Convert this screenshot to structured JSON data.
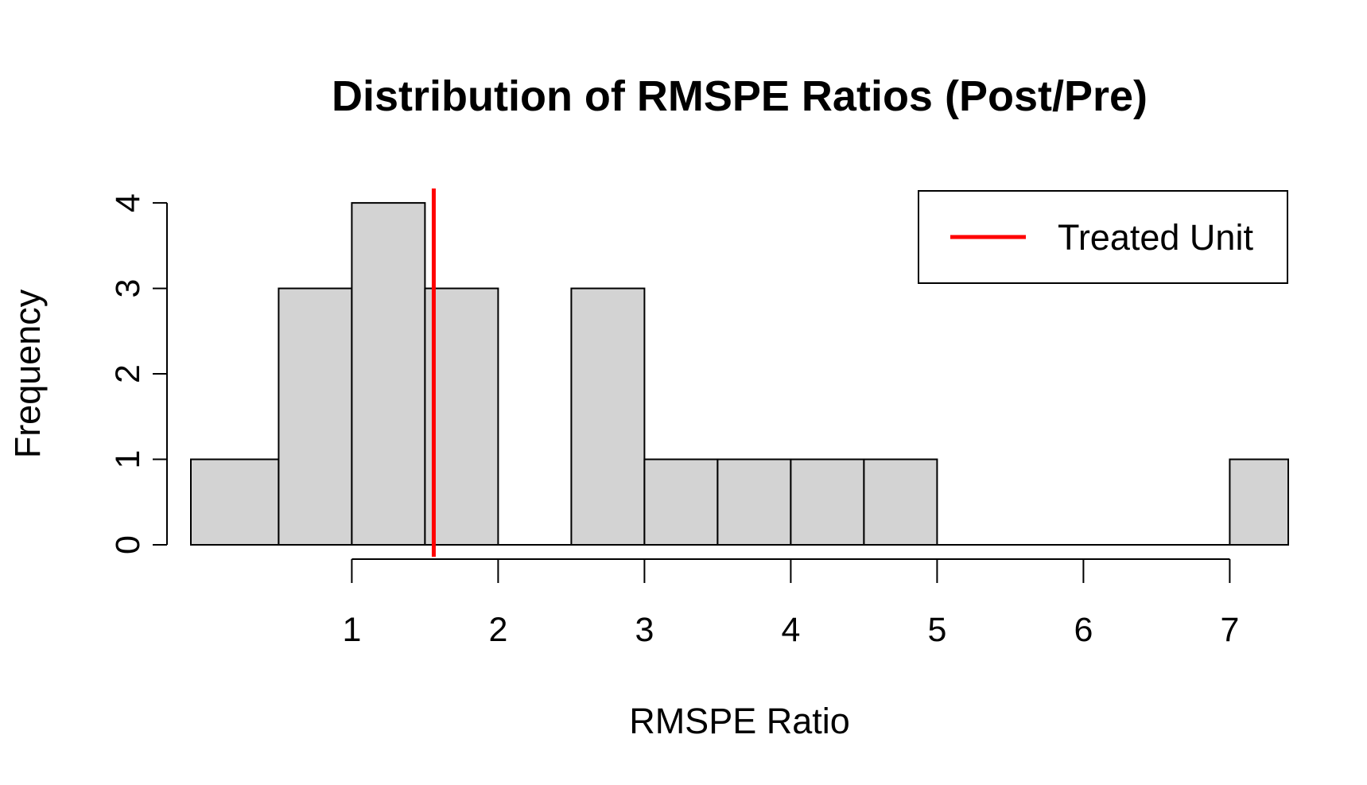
{
  "chart_data": {
    "type": "bar",
    "title": "Distribution of RMSPE Ratios (Post/Pre)",
    "xlabel": "RMSPE Ratio",
    "ylabel": "Frequency",
    "bins": [
      {
        "start": -0.1,
        "end": 0.5,
        "count": 1
      },
      {
        "start": 0.5,
        "end": 1.0,
        "count": 3
      },
      {
        "start": 1.0,
        "end": 1.5,
        "count": 4
      },
      {
        "start": 1.5,
        "end": 2.0,
        "count": 3
      },
      {
        "start": 2.0,
        "end": 2.5,
        "count": 0
      },
      {
        "start": 2.5,
        "end": 3.0,
        "count": 3
      },
      {
        "start": 3.0,
        "end": 3.5,
        "count": 1
      },
      {
        "start": 3.5,
        "end": 4.0,
        "count": 1
      },
      {
        "start": 4.0,
        "end": 4.5,
        "count": 1
      },
      {
        "start": 4.5,
        "end": 5.0,
        "count": 1
      },
      {
        "start": 5.0,
        "end": 5.5,
        "count": 0
      },
      {
        "start": 5.5,
        "end": 6.0,
        "count": 0
      },
      {
        "start": 6.0,
        "end": 6.5,
        "count": 0
      },
      {
        "start": 6.5,
        "end": 7.0,
        "count": 0
      },
      {
        "start": 7.0,
        "end": 7.4,
        "count": 1
      }
    ],
    "xlim": [
      -0.1,
      7.4
    ],
    "ylim": [
      0,
      4.15
    ],
    "x_ticks": [
      1,
      2,
      3,
      4,
      5,
      6,
      7
    ],
    "y_ticks": [
      0,
      1,
      2,
      3,
      4
    ],
    "reference_line": {
      "x": 1.56,
      "color": "#ff0000",
      "label": "Treated Unit"
    },
    "legend": {
      "position": "top-right",
      "entries": [
        "Treated Unit"
      ]
    },
    "bar_color": "#d3d3d3",
    "edge_color": "#000000",
    "grid": false
  }
}
